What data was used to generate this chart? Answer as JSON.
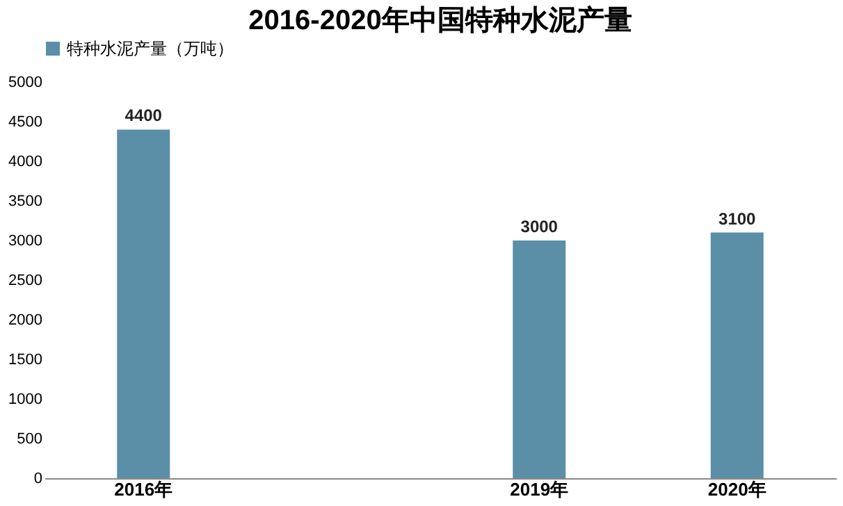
{
  "chart_data": {
    "type": "bar",
    "title": "2016-2020年中国特种水泥产量",
    "categories": [
      "2016年",
      null,
      "2019年",
      "2020年"
    ],
    "series": [
      {
        "name": "特种水泥产量（万吨）",
        "color": "#5b8fa8",
        "values": [
          4400,
          null,
          3000,
          3100
        ]
      }
    ],
    "ylim": [
      0,
      5000
    ],
    "yticks": [
      0,
      500,
      1000,
      1500,
      2000,
      2500,
      3000,
      3500,
      4000,
      4500,
      5000
    ],
    "grid": false,
    "legend": "top",
    "data_labels": true
  }
}
